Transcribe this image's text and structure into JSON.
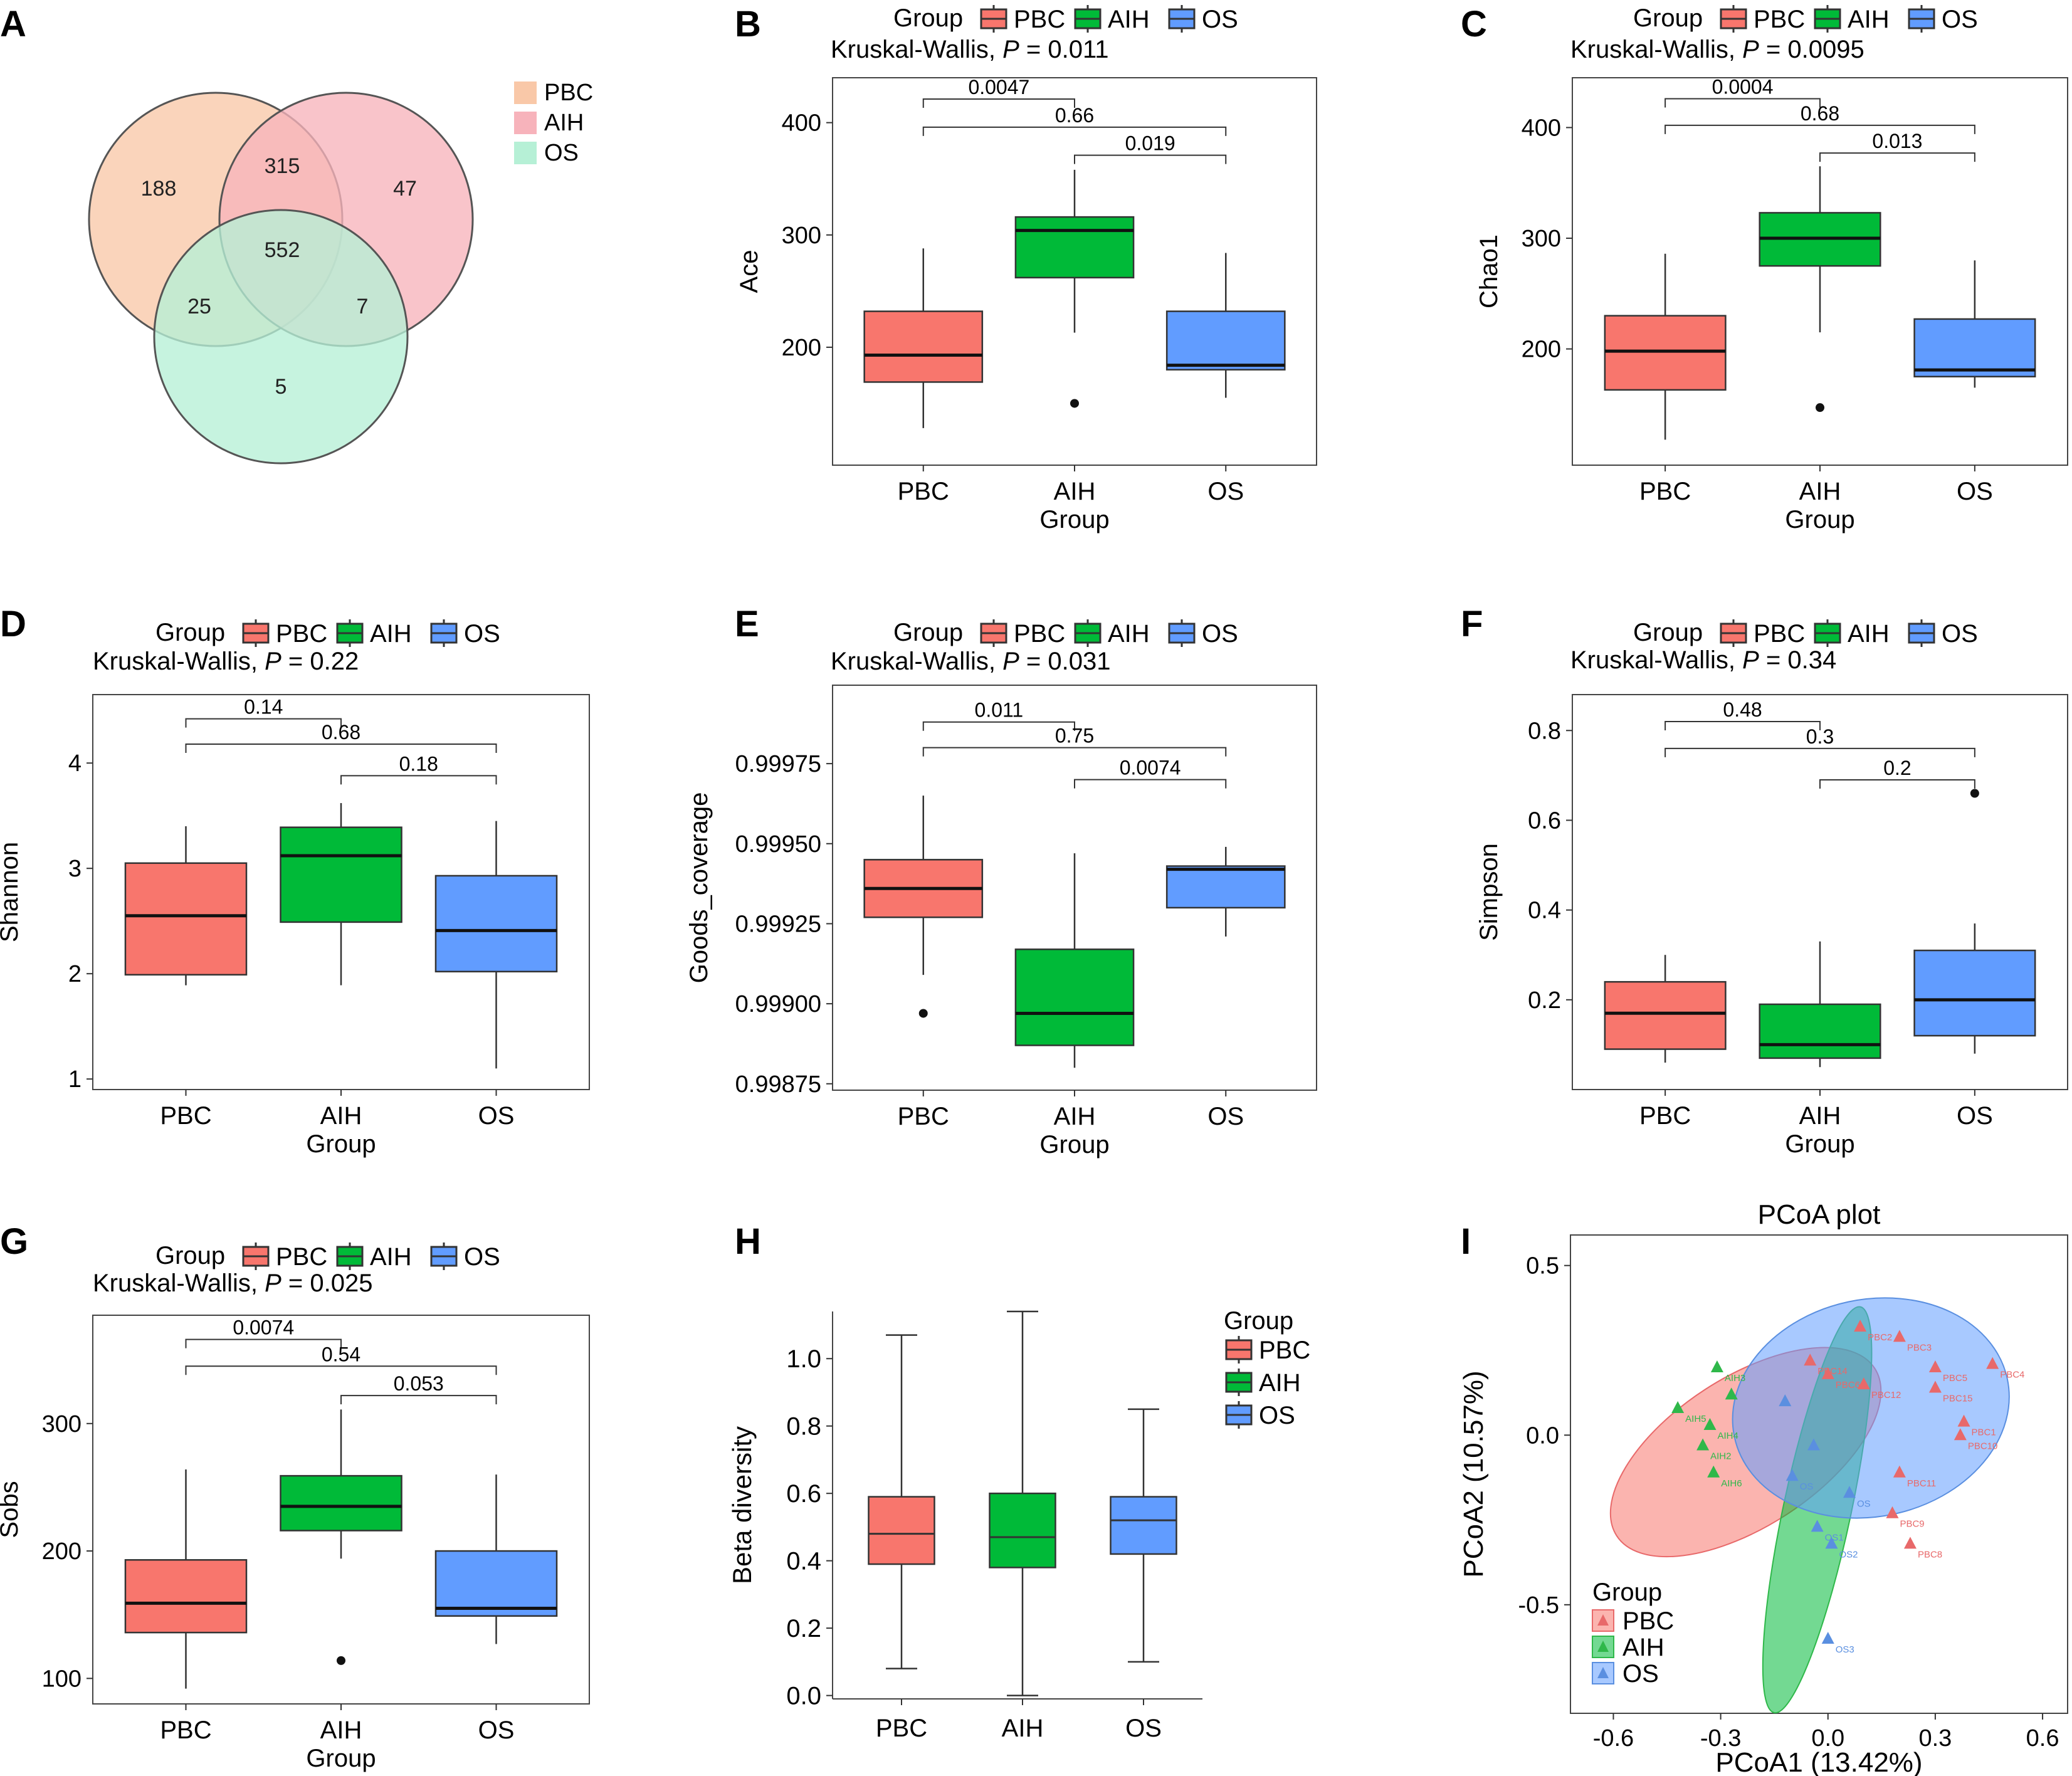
{
  "panels": {
    "A": {
      "letter": "A"
    },
    "B": {
      "letter": "B"
    },
    "C": {
      "letter": "C"
    },
    "D": {
      "letter": "D"
    },
    "E": {
      "letter": "E"
    },
    "F": {
      "letter": "F"
    },
    "G": {
      "letter": "G"
    },
    "H": {
      "letter": "H"
    },
    "I": {
      "letter": "I"
    }
  },
  "colors": {
    "PBC": "#f8766d",
    "AIH": "#00ba38",
    "OS": "#619cff",
    "venn_PBC": "#f9c8a8",
    "venn_AIH": "#f7b3bb",
    "venn_OS": "#b6f0d6"
  },
  "chart_data": [
    {
      "panel": "A",
      "type": "venn",
      "legend": [
        "PBC",
        "AIH",
        "OS"
      ],
      "regions": {
        "PBC_only": 188,
        "PBC_AIH": 315,
        "AIH_only": 47,
        "all": 552,
        "PBC_OS": 25,
        "AIH_OS": 7,
        "OS_only": 5
      }
    },
    {
      "panel": "B",
      "type": "boxplot",
      "legend_title": "Group",
      "legend": [
        "PBC",
        "AIH",
        "OS"
      ],
      "test_label": "Kruskal-Wallis, ",
      "p_label": "P",
      "p_value": " = 0.011",
      "xlabel": "Group",
      "ylabel": "Ace",
      "categories": [
        "PBC",
        "AIH",
        "OS"
      ],
      "ylim": [
        95,
        440
      ],
      "yticks": [
        200,
        300,
        400
      ],
      "boxes": [
        {
          "name": "PBC",
          "min": 128,
          "q1": 169,
          "median": 193,
          "q3": 232,
          "max": 288,
          "outliers": []
        },
        {
          "name": "AIH",
          "min": 213,
          "q1": 262,
          "median": 304,
          "q3": 316,
          "max": 358,
          "outliers": [
            150
          ]
        },
        {
          "name": "OS",
          "min": 155,
          "q1": 180,
          "median": 184,
          "q3": 232,
          "max": 284,
          "outliers": []
        }
      ],
      "comparisons": [
        {
          "from": 0,
          "to": 1,
          "label": "0.0047",
          "y": 421
        },
        {
          "from": 0,
          "to": 2,
          "label": "0.66",
          "y": 396
        },
        {
          "from": 1,
          "to": 2,
          "label": "0.019",
          "y": 371
        }
      ]
    },
    {
      "panel": "C",
      "type": "boxplot",
      "legend_title": "Group",
      "legend": [
        "PBC",
        "AIH",
        "OS"
      ],
      "test_label": "Kruskal-Wallis, ",
      "p_label": "P",
      "p_value": " = 0.0095",
      "xlabel": "Group",
      "ylabel": "Chao1",
      "categories": [
        "PBC",
        "AIH",
        "OS"
      ],
      "ylim": [
        95,
        445
      ],
      "yticks": [
        200,
        300,
        400
      ],
      "boxes": [
        {
          "name": "PBC",
          "min": 118,
          "q1": 163,
          "median": 198,
          "q3": 230,
          "max": 286,
          "outliers": []
        },
        {
          "name": "AIH",
          "min": 215,
          "q1": 275,
          "median": 300,
          "q3": 323,
          "max": 365,
          "outliers": [
            147
          ]
        },
        {
          "name": "OS",
          "min": 165,
          "q1": 175,
          "median": 181,
          "q3": 227,
          "max": 280,
          "outliers": []
        }
      ],
      "comparisons": [
        {
          "from": 0,
          "to": 1,
          "label": "0.0004",
          "y": 426
        },
        {
          "from": 0,
          "to": 2,
          "label": "0.68",
          "y": 402
        },
        {
          "from": 1,
          "to": 2,
          "label": "0.013",
          "y": 377
        }
      ]
    },
    {
      "panel": "D",
      "type": "boxplot",
      "legend_title": "Group",
      "legend": [
        "PBC",
        "AIH",
        "OS"
      ],
      "test_label": "Kruskal-Wallis, ",
      "p_label": "P",
      "p_value": " = 0.22",
      "xlabel": "Group",
      "ylabel": "Shannon",
      "categories": [
        "PBC",
        "AIH",
        "OS"
      ],
      "ylim": [
        0.9,
        4.65
      ],
      "yticks": [
        1,
        2,
        3,
        4
      ],
      "boxes": [
        {
          "name": "PBC",
          "min": 1.89,
          "q1": 1.99,
          "median": 2.55,
          "q3": 3.05,
          "max": 3.4,
          "outliers": []
        },
        {
          "name": "AIH",
          "min": 1.89,
          "q1": 2.49,
          "median": 3.12,
          "q3": 3.39,
          "max": 3.62,
          "outliers": []
        },
        {
          "name": "OS",
          "min": 1.1,
          "q1": 2.02,
          "median": 2.41,
          "q3": 2.93,
          "max": 3.45,
          "outliers": []
        }
      ],
      "comparisons": [
        {
          "from": 0,
          "to": 1,
          "label": "0.14",
          "y": 4.42
        },
        {
          "from": 0,
          "to": 2,
          "label": "0.68",
          "y": 4.18
        },
        {
          "from": 1,
          "to": 2,
          "label": "0.18",
          "y": 3.88
        }
      ]
    },
    {
      "panel": "E",
      "type": "boxplot",
      "legend_title": "Group",
      "legend": [
        "PBC",
        "AIH",
        "OS"
      ],
      "test_label": "Kruskal-Wallis, ",
      "p_label": "P",
      "p_value": " = 0.031",
      "xlabel": "Group",
      "ylabel": "Goods_coverage",
      "categories": [
        "PBC",
        "AIH",
        "OS"
      ],
      "ylim": [
        0.99873,
        0.999995
      ],
      "yticks": [
        0.99875,
        0.999,
        0.99925,
        0.9995,
        0.99975
      ],
      "ytick_labels": [
        "0.99875",
        "0.99900",
        "0.99925",
        "0.99950",
        "0.99975"
      ],
      "boxes": [
        {
          "name": "PBC",
          "min": 0.99909,
          "q1": 0.99927,
          "median": 0.99936,
          "q3": 0.99945,
          "max": 0.99965,
          "outliers": [
            0.99897
          ]
        },
        {
          "name": "AIH",
          "min": 0.9988,
          "q1": 0.99887,
          "median": 0.99897,
          "q3": 0.99917,
          "max": 0.99947,
          "outliers": []
        },
        {
          "name": "OS",
          "min": 0.99921,
          "q1": 0.9993,
          "median": 0.99942,
          "q3": 0.99943,
          "max": 0.99949,
          "outliers": []
        }
      ],
      "comparisons": [
        {
          "from": 0,
          "to": 1,
          "label": "0.011",
          "y": 0.99988
        },
        {
          "from": 0,
          "to": 2,
          "label": "0.75",
          "y": 0.9998
        },
        {
          "from": 1,
          "to": 2,
          "label": "0.0074",
          "y": 0.9997
        }
      ]
    },
    {
      "panel": "F",
      "type": "boxplot",
      "legend_title": "Group",
      "legend": [
        "PBC",
        "AIH",
        "OS"
      ],
      "test_label": "Kruskal-Wallis, ",
      "p_label": "P",
      "p_value": " = 0.34",
      "xlabel": "Group",
      "ylabel": "Simpson",
      "categories": [
        "PBC",
        "AIH",
        "OS"
      ],
      "ylim": [
        0.0,
        0.88
      ],
      "yticks": [
        0.2,
        0.4,
        0.6,
        0.8
      ],
      "boxes": [
        {
          "name": "PBC",
          "min": 0.06,
          "q1": 0.09,
          "median": 0.17,
          "q3": 0.24,
          "max": 0.3,
          "outliers": []
        },
        {
          "name": "AIH",
          "min": 0.05,
          "q1": 0.07,
          "median": 0.1,
          "q3": 0.19,
          "max": 0.33,
          "outliers": []
        },
        {
          "name": "OS",
          "min": 0.08,
          "q1": 0.12,
          "median": 0.2,
          "q3": 0.31,
          "max": 0.37,
          "outliers": [
            0.66
          ]
        }
      ],
      "comparisons": [
        {
          "from": 0,
          "to": 1,
          "label": "0.48",
          "y": 0.82
        },
        {
          "from": 0,
          "to": 2,
          "label": "0.3",
          "y": 0.76
        },
        {
          "from": 1,
          "to": 2,
          "label": "0.2",
          "y": 0.69
        }
      ]
    },
    {
      "panel": "G",
      "type": "boxplot",
      "legend_title": "Group",
      "legend": [
        "PBC",
        "AIH",
        "OS"
      ],
      "test_label": "Kruskal-Wallis, ",
      "p_label": "P",
      "p_value": " = 0.025",
      "xlabel": "Group",
      "ylabel": "Sobs",
      "categories": [
        "PBC",
        "AIH",
        "OS"
      ],
      "ylim": [
        80,
        385
      ],
      "yticks": [
        100,
        200,
        300
      ],
      "boxes": [
        {
          "name": "PBC",
          "min": 92,
          "q1": 136,
          "median": 159,
          "q3": 193,
          "max": 264,
          "outliers": []
        },
        {
          "name": "AIH",
          "min": 194,
          "q1": 216,
          "median": 235,
          "q3": 259,
          "max": 311,
          "outliers": [
            114
          ]
        },
        {
          "name": "OS",
          "min": 127,
          "q1": 149,
          "median": 155,
          "q3": 200,
          "max": 260,
          "outliers": []
        }
      ],
      "comparisons": [
        {
          "from": 0,
          "to": 1,
          "label": "0.0074",
          "y": 366
        },
        {
          "from": 0,
          "to": 2,
          "label": "0.54",
          "y": 345
        },
        {
          "from": 1,
          "to": 2,
          "label": "0.053",
          "y": 322
        }
      ]
    },
    {
      "panel": "H",
      "type": "boxplot",
      "legend_title": "Group",
      "legend": [
        "PBC",
        "AIH",
        "OS"
      ],
      "xlabel": "",
      "ylabel": "Beta diversity",
      "categories": [
        "PBC",
        "AIH",
        "OS"
      ],
      "ylim": [
        -0.01,
        1.14
      ],
      "yticks": [
        0.0,
        0.2,
        0.4,
        0.6,
        0.8,
        1.0
      ],
      "ytick_labels": [
        "0.0",
        "0.2",
        "0.4",
        "0.6",
        "0.8",
        "1.0"
      ],
      "boxes": [
        {
          "name": "PBC",
          "min": 0.08,
          "q1": 0.39,
          "median": 0.48,
          "q3": 0.59,
          "max": 1.07,
          "outliers": []
        },
        {
          "name": "AIH",
          "min": 0.0,
          "q1": 0.38,
          "median": 0.47,
          "q3": 0.6,
          "max": 1.14,
          "outliers": []
        },
        {
          "name": "OS",
          "min": 0.1,
          "q1": 0.42,
          "median": 0.52,
          "q3": 0.59,
          "max": 0.85,
          "outliers": []
        }
      ],
      "comparisons": []
    },
    {
      "panel": "I",
      "type": "scatter",
      "title": "PCoA plot",
      "xlabel": "PCoA1 (13.42%)",
      "ylabel": "PCoA2 (10.57%)",
      "xlim": [
        -0.72,
        0.67
      ],
      "ylim": [
        -0.82,
        0.59
      ],
      "xticks": [
        -0.6,
        -0.3,
        0.0,
        0.3,
        0.6
      ],
      "yticks": [
        -0.5,
        0.0,
        0.5
      ],
      "xtick_labels": [
        "-0.6",
        "-0.3",
        "0.0",
        "0.3",
        "0.6"
      ],
      "ytick_labels": [
        "-0.5",
        "0.0",
        "0.5"
      ],
      "legend_title": "Group",
      "legend": [
        "PBC",
        "AIH",
        "OS"
      ],
      "ellipses": [
        {
          "group": "PBC",
          "cx": -0.23,
          "cy": -0.05,
          "rx": 0.43,
          "ry": 0.22,
          "angle": -33
        },
        {
          "group": "AIH",
          "cx": -0.03,
          "cy": -0.22,
          "rx": 0.58,
          "ry": 0.1,
          "angle": -78
        },
        {
          "group": "OS",
          "cx": 0.12,
          "cy": 0.08,
          "rx": 0.39,
          "ry": 0.32,
          "angle": -12
        }
      ],
      "points": [
        {
          "group": "PBC",
          "x": 0.09,
          "y": 0.32,
          "label": "PBC2"
        },
        {
          "group": "PBC",
          "x": 0.2,
          "y": 0.29,
          "label": "PBC3"
        },
        {
          "group": "PBC",
          "x": 0.3,
          "y": 0.2,
          "label": "PBC5"
        },
        {
          "group": "PBC",
          "x": 0.46,
          "y": 0.21,
          "label": "PBC4"
        },
        {
          "group": "PBC",
          "x": 0.0,
          "y": 0.18,
          "label": "PBC6"
        },
        {
          "group": "PBC",
          "x": -0.05,
          "y": 0.22,
          "label": "PBC14"
        },
        {
          "group": "PBC",
          "x": 0.1,
          "y": 0.15,
          "label": "PBC12"
        },
        {
          "group": "PBC",
          "x": 0.3,
          "y": 0.14,
          "label": "PBC15"
        },
        {
          "group": "PBC",
          "x": 0.38,
          "y": 0.04,
          "label": "PBC1"
        },
        {
          "group": "PBC",
          "x": 0.37,
          "y": 0.0,
          "label": "PBC10"
        },
        {
          "group": "PBC",
          "x": 0.2,
          "y": -0.11,
          "label": "PBC11"
        },
        {
          "group": "PBC",
          "x": 0.18,
          "y": -0.23,
          "label": "PBC9"
        },
        {
          "group": "PBC",
          "x": 0.23,
          "y": -0.32,
          "label": "PBC8"
        },
        {
          "group": "AIH",
          "x": -0.31,
          "y": 0.2,
          "label": "AIH3"
        },
        {
          "group": "AIH",
          "x": -0.42,
          "y": 0.08,
          "label": "AIH5"
        },
        {
          "group": "AIH",
          "x": -0.33,
          "y": 0.03,
          "label": "AIH4"
        },
        {
          "group": "AIH",
          "x": -0.32,
          "y": -0.11,
          "label": "AIH6"
        },
        {
          "group": "AIH",
          "x": -0.35,
          "y": -0.03,
          "label": "AIH2"
        },
        {
          "group": "AIH",
          "x": -0.27,
          "y": 0.12,
          "label": ""
        },
        {
          "group": "OS",
          "x": -0.12,
          "y": 0.1,
          "label": ""
        },
        {
          "group": "OS",
          "x": -0.04,
          "y": -0.03,
          "label": ""
        },
        {
          "group": "OS",
          "x": -0.1,
          "y": -0.12,
          "label": "OS"
        },
        {
          "group": "OS",
          "x": 0.06,
          "y": -0.17,
          "label": "OS"
        },
        {
          "group": "OS",
          "x": -0.03,
          "y": -0.27,
          "label": "OS1"
        },
        {
          "group": "OS",
          "x": 0.01,
          "y": -0.32,
          "label": "OS2"
        },
        {
          "group": "OS",
          "x": 0.0,
          "y": -0.6,
          "label": "OS3"
        }
      ]
    }
  ]
}
